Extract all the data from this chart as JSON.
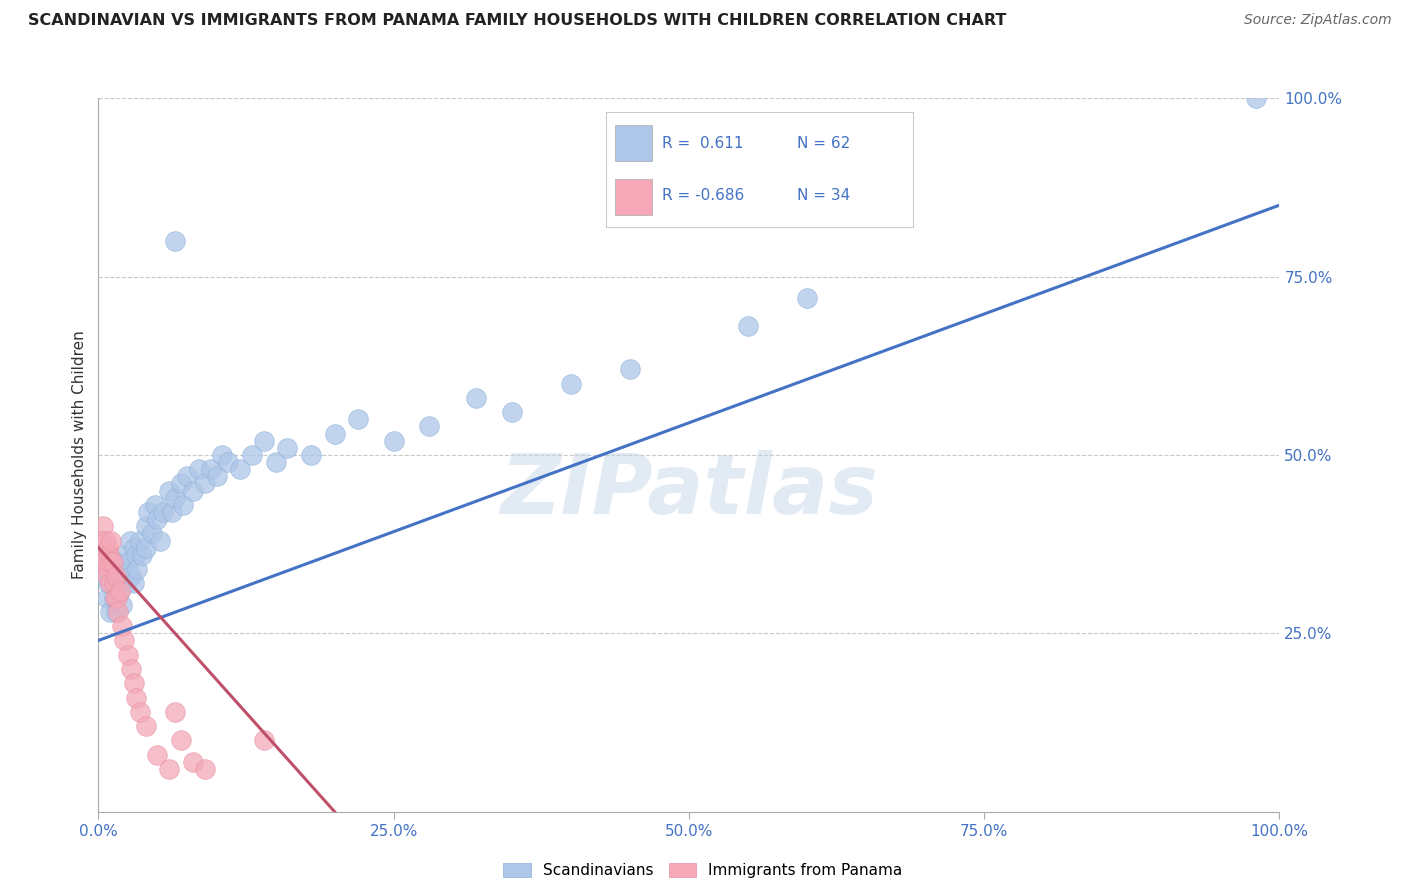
{
  "title": "SCANDINAVIAN VS IMMIGRANTS FROM PANAMA FAMILY HOUSEHOLDS WITH CHILDREN CORRELATION CHART",
  "source": "Source: ZipAtlas.com",
  "ylabel": "Family Households with Children",
  "watermark": "ZIPatlas",
  "blue_R": 0.611,
  "blue_N": 62,
  "pink_R": -0.686,
  "pink_N": 34,
  "xlim": [
    0.0,
    1.0
  ],
  "ylim": [
    0.0,
    1.0
  ],
  "xticks": [
    0.0,
    0.25,
    0.5,
    0.75,
    1.0
  ],
  "yticks": [
    0.25,
    0.5,
    0.75,
    1.0
  ],
  "xticklabels": [
    "0.0%",
    "25.0%",
    "50.0%",
    "75.0%",
    "100.0%"
  ],
  "yticklabels": [
    "25.0%",
    "50.0%",
    "75.0%",
    "100.0%"
  ],
  "blue_color": "#aec6e8",
  "pink_color": "#f4a8b8",
  "blue_line_color": "#4472c4",
  "pink_line_color": "#c0506a",
  "grid_color": "#c8c8c8",
  "background_color": "#ffffff",
  "blue_scatter_x": [
    0.005,
    0.007,
    0.008,
    0.01,
    0.012,
    0.013,
    0.015,
    0.015,
    0.016,
    0.018,
    0.02,
    0.02,
    0.022,
    0.023,
    0.025,
    0.027,
    0.028,
    0.03,
    0.03,
    0.032,
    0.033,
    0.035,
    0.037,
    0.04,
    0.04,
    0.042,
    0.045,
    0.048,
    0.05,
    0.052,
    0.055,
    0.06,
    0.062,
    0.065,
    0.07,
    0.072,
    0.075,
    0.08,
    0.085,
    0.09,
    0.095,
    0.1,
    0.105,
    0.11,
    0.12,
    0.13,
    0.14,
    0.15,
    0.16,
    0.18,
    0.2,
    0.22,
    0.25,
    0.28,
    0.32,
    0.35,
    0.4,
    0.45,
    0.55,
    0.6,
    0.065,
    0.98
  ],
  "blue_scatter_y": [
    0.33,
    0.3,
    0.32,
    0.28,
    0.35,
    0.3,
    0.33,
    0.28,
    0.35,
    0.31,
    0.34,
    0.29,
    0.36,
    0.32,
    0.35,
    0.38,
    0.33,
    0.37,
    0.32,
    0.36,
    0.34,
    0.38,
    0.36,
    0.4,
    0.37,
    0.42,
    0.39,
    0.43,
    0.41,
    0.38,
    0.42,
    0.45,
    0.42,
    0.44,
    0.46,
    0.43,
    0.47,
    0.45,
    0.48,
    0.46,
    0.48,
    0.47,
    0.5,
    0.49,
    0.48,
    0.5,
    0.52,
    0.49,
    0.51,
    0.5,
    0.53,
    0.55,
    0.52,
    0.54,
    0.58,
    0.56,
    0.6,
    0.62,
    0.68,
    0.72,
    0.8,
    1.0
  ],
  "pink_scatter_x": [
    0.002,
    0.003,
    0.004,
    0.005,
    0.006,
    0.007,
    0.008,
    0.008,
    0.009,
    0.01,
    0.01,
    0.011,
    0.012,
    0.013,
    0.014,
    0.015,
    0.016,
    0.017,
    0.018,
    0.02,
    0.022,
    0.025,
    0.028,
    0.03,
    0.032,
    0.035,
    0.04,
    0.05,
    0.06,
    0.065,
    0.07,
    0.08,
    0.09,
    0.14
  ],
  "pink_scatter_y": [
    0.38,
    0.36,
    0.4,
    0.35,
    0.38,
    0.33,
    0.37,
    0.34,
    0.36,
    0.35,
    0.32,
    0.38,
    0.35,
    0.32,
    0.3,
    0.33,
    0.3,
    0.28,
    0.31,
    0.26,
    0.24,
    0.22,
    0.2,
    0.18,
    0.16,
    0.14,
    0.12,
    0.08,
    0.06,
    0.14,
    0.1,
    0.07,
    0.06,
    0.1
  ],
  "blue_line_x": [
    0.0,
    1.0
  ],
  "blue_line_y": [
    0.24,
    0.85
  ],
  "pink_line_x": [
    0.0,
    0.2
  ],
  "pink_line_y": [
    0.37,
    0.0
  ]
}
